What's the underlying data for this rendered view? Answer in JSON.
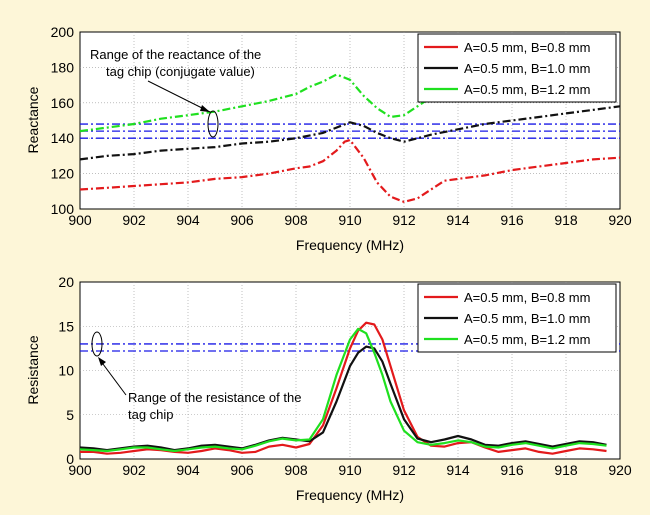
{
  "chart_data": [
    {
      "type": "line",
      "xlabel": "Frequency (MHz)",
      "ylabel": "Reactance",
      "xlim": [
        900,
        920
      ],
      "ylim": [
        100,
        200
      ],
      "xticks": [
        900,
        902,
        904,
        906,
        908,
        910,
        912,
        914,
        916,
        918,
        920
      ],
      "yticks": [
        100,
        120,
        140,
        160,
        180,
        200
      ],
      "grid": true,
      "legend_position": "top-right",
      "annotation": [
        "Range of the reactance of the",
        "tag chip (conjugate value)"
      ],
      "series": [
        {
          "name": "A=0.5 mm, B=0.8 mm",
          "color": "#e31a1c",
          "style": "dashdot",
          "x": [
            900,
            901,
            902,
            903,
            904,
            905,
            906,
            907,
            908,
            908.5,
            909,
            909.5,
            909.8,
            910,
            910.5,
            911,
            911.5,
            912,
            912.5,
            913,
            913.5,
            914,
            915,
            916,
            917,
            918,
            919,
            920
          ],
          "y": [
            111,
            112,
            113,
            114,
            115,
            117,
            118,
            120,
            123,
            124,
            127,
            133,
            138,
            139,
            129,
            115,
            107,
            104,
            106,
            111,
            116,
            117,
            119,
            122,
            124,
            126,
            128,
            129
          ]
        },
        {
          "name": "A=0.5 mm, B=1.0 mm",
          "color": "#111111",
          "style": "dashdot",
          "x": [
            900,
            901,
            902,
            903,
            904,
            905,
            906,
            907,
            908,
            909,
            909.5,
            910,
            910.5,
            911,
            911.5,
            912,
            912.5,
            913,
            914,
            915,
            916,
            917,
            918,
            919,
            920
          ],
          "y": [
            128,
            130,
            131,
            133,
            134,
            135,
            137,
            138,
            140,
            143,
            146,
            149,
            147,
            143,
            140,
            138,
            140,
            142,
            145,
            148,
            150,
            152,
            154,
            156,
            158
          ]
        },
        {
          "name": "A=0.5 mm, B=1.2 mm",
          "color": "#1fe01f",
          "style": "dashdot",
          "x": [
            900,
            901,
            902,
            903,
            904,
            905,
            906,
            907,
            908,
            908.5,
            909,
            909.5,
            910,
            910.5,
            911,
            911.5,
            912,
            912.5,
            913,
            913.5,
            914
          ],
          "y": [
            144,
            146,
            148,
            151,
            153,
            155,
            158,
            161,
            165,
            169,
            172,
            176,
            173,
            164,
            157,
            152,
            153,
            158,
            163,
            167,
            170
          ]
        }
      ],
      "reference_lines": {
        "color": "#1a1ae6",
        "style": "dashdot",
        "y": [
          148,
          144,
          140
        ]
      }
    },
    {
      "type": "line",
      "xlabel": "Frequency (MHz)",
      "ylabel": "Resistance",
      "xlim": [
        900,
        920
      ],
      "ylim": [
        0,
        20
      ],
      "xticks": [
        900,
        902,
        904,
        906,
        908,
        910,
        912,
        914,
        916,
        918,
        920
      ],
      "yticks": [
        0,
        5,
        10,
        15,
        20
      ],
      "grid": true,
      "legend_position": "top-right",
      "annotation": [
        "Range of the resistance of the",
        "tag chip"
      ],
      "series": [
        {
          "name": "A=0.5 mm, B=0.8 mm",
          "color": "#e31a1c",
          "style": "solid",
          "x": [
            900,
            900.5,
            901,
            901.5,
            902,
            902.5,
            903,
            903.5,
            904,
            904.5,
            905,
            905.5,
            906,
            906.5,
            907,
            907.5,
            908,
            908.5,
            909,
            909.5,
            910,
            910.3,
            910.6,
            910.9,
            911.2,
            911.5,
            912,
            912.5,
            913,
            913.5,
            914,
            914.5,
            915,
            915.5,
            916,
            916.5,
            917,
            917.5,
            918,
            918.5,
            919,
            919.5
          ],
          "y": [
            0.8,
            0.8,
            0.6,
            0.7,
            0.9,
            1.1,
            1.0,
            0.8,
            0.7,
            0.9,
            1.2,
            1.0,
            0.7,
            0.8,
            1.4,
            1.6,
            1.3,
            1.7,
            3.8,
            8.0,
            12.5,
            14.5,
            15.4,
            15.2,
            13.5,
            10.5,
            5.5,
            2.5,
            1.5,
            1.4,
            1.8,
            1.9,
            1.3,
            0.8,
            1.0,
            1.2,
            0.8,
            0.6,
            0.9,
            1.2,
            1.1,
            0.9
          ]
        },
        {
          "name": "A=0.5 mm, B=1.0 mm",
          "color": "#111111",
          "style": "solid",
          "x": [
            900,
            900.5,
            901,
            901.5,
            902,
            902.5,
            903,
            903.5,
            904,
            904.5,
            905,
            905.5,
            906,
            906.5,
            907,
            907.5,
            908,
            908.5,
            909,
            909.5,
            910,
            910.3,
            910.6,
            910.9,
            911.2,
            911.5,
            912,
            912.5,
            913,
            913.5,
            914,
            914.5,
            915,
            915.5,
            916,
            916.5,
            917,
            917.5,
            918,
            918.5,
            919,
            919.5
          ],
          "y": [
            1.3,
            1.2,
            1.0,
            1.2,
            1.4,
            1.5,
            1.3,
            1.0,
            1.2,
            1.5,
            1.6,
            1.4,
            1.2,
            1.6,
            2.1,
            2.4,
            2.2,
            2.0,
            3.0,
            6.5,
            10.5,
            12.0,
            12.7,
            12.5,
            11.0,
            8.5,
            4.5,
            2.3,
            1.9,
            2.2,
            2.6,
            2.2,
            1.6,
            1.5,
            1.8,
            2.0,
            1.7,
            1.4,
            1.7,
            2.0,
            1.9,
            1.6
          ]
        },
        {
          "name": "A=0.5 mm, B=1.2 mm",
          "color": "#1fe01f",
          "style": "solid",
          "x": [
            900,
            900.5,
            901,
            901.5,
            902,
            902.5,
            903,
            903.5,
            904,
            904.5,
            905,
            905.5,
            906,
            906.5,
            907,
            907.5,
            908,
            908.5,
            909,
            909.5,
            910,
            910.3,
            910.6,
            910.9,
            911.2,
            911.5,
            912,
            912.5,
            913,
            913.5,
            914,
            914.5,
            915,
            915.5,
            916,
            916.5,
            917,
            917.5,
            918,
            918.5,
            919,
            919.5
          ],
          "y": [
            1.1,
            1.0,
            0.9,
            1.1,
            1.3,
            1.3,
            1.1,
            0.9,
            1.1,
            1.3,
            1.4,
            1.2,
            1.1,
            1.5,
            2.0,
            2.3,
            2.1,
            2.2,
            4.5,
            9.5,
            13.5,
            14.7,
            14.2,
            12.0,
            9.5,
            6.5,
            3.2,
            1.9,
            1.6,
            1.8,
            2.1,
            1.9,
            1.4,
            1.3,
            1.6,
            1.8,
            1.5,
            1.2,
            1.5,
            1.8,
            1.7,
            1.5
          ]
        }
      ],
      "reference_lines": {
        "color": "#1a1ae6",
        "style": "dashdot",
        "y": [
          13.0,
          12.2
        ]
      }
    }
  ]
}
